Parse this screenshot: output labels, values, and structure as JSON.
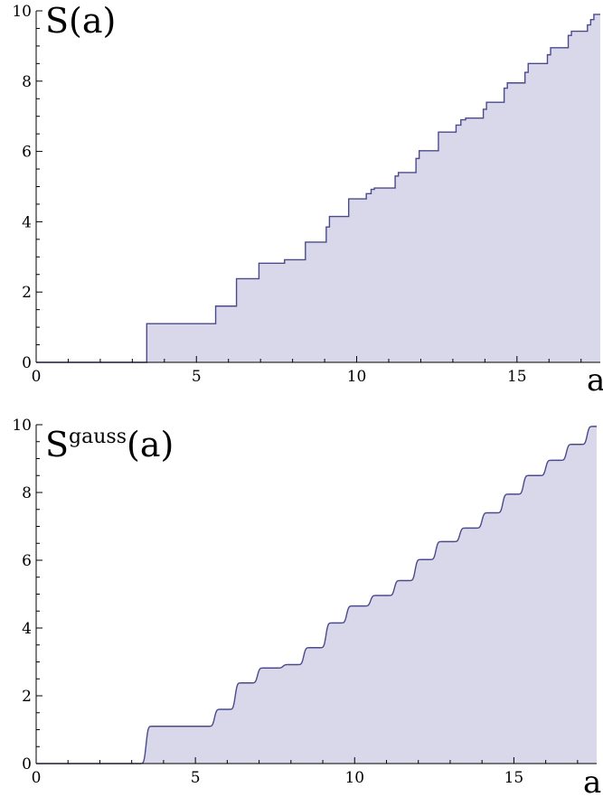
{
  "chart_data": [
    {
      "type": "area",
      "title": "",
      "ylabel": "S(a)",
      "xlabel": "a",
      "xlim": [
        0,
        17.6
      ],
      "ylim": [
        0,
        10
      ],
      "xticks": [
        0,
        5,
        10,
        15
      ],
      "yticks": [
        0,
        2,
        4,
        6,
        8,
        10
      ],
      "grid": false,
      "legend": "none",
      "colors": {
        "line": "#4a4a8c",
        "fill": "#d9d7ea"
      },
      "jumps": [
        {
          "x": 3.45,
          "y": 1.1
        },
        {
          "x": 5.6,
          "y": 1.6
        },
        {
          "x": 6.25,
          "y": 2.38
        },
        {
          "x": 6.95,
          "y": 2.82
        },
        {
          "x": 7.75,
          "y": 2.92
        },
        {
          "x": 8.4,
          "y": 3.42
        },
        {
          "x": 9.05,
          "y": 3.85
        },
        {
          "x": 9.15,
          "y": 4.15
        },
        {
          "x": 9.75,
          "y": 4.65
        },
        {
          "x": 10.3,
          "y": 4.8
        },
        {
          "x": 10.45,
          "y": 4.92
        },
        {
          "x": 10.55,
          "y": 4.96
        },
        {
          "x": 11.2,
          "y": 5.3
        },
        {
          "x": 11.3,
          "y": 5.4
        },
        {
          "x": 11.85,
          "y": 5.8
        },
        {
          "x": 11.95,
          "y": 6.02
        },
        {
          "x": 12.55,
          "y": 6.55
        },
        {
          "x": 13.1,
          "y": 6.75
        },
        {
          "x": 13.25,
          "y": 6.9
        },
        {
          "x": 13.4,
          "y": 6.95
        },
        {
          "x": 13.95,
          "y": 7.2
        },
        {
          "x": 14.05,
          "y": 7.4
        },
        {
          "x": 14.6,
          "y": 7.8
        },
        {
          "x": 14.7,
          "y": 7.95
        },
        {
          "x": 15.25,
          "y": 8.25
        },
        {
          "x": 15.35,
          "y": 8.5
        },
        {
          "x": 15.95,
          "y": 8.75
        },
        {
          "x": 16.05,
          "y": 8.95
        },
        {
          "x": 16.6,
          "y": 9.3
        },
        {
          "x": 16.7,
          "y": 9.42
        },
        {
          "x": 17.2,
          "y": 9.6
        },
        {
          "x": 17.3,
          "y": 9.75
        },
        {
          "x": 17.4,
          "y": 9.9
        }
      ]
    },
    {
      "type": "area",
      "title": "",
      "ylabel": "S",
      "ylabel_superscript": "gauss",
      "ylabel_suffix": "(a)",
      "xlabel": "a",
      "xlim": [
        0,
        17.6
      ],
      "ylim": [
        0,
        10
      ],
      "xticks": [
        0,
        5,
        10,
        15
      ],
      "yticks": [
        0,
        2,
        4,
        6,
        8,
        10
      ],
      "grid": false,
      "legend": "none",
      "colors": {
        "line": "#4a4a8c",
        "fill": "#d9d7ea"
      },
      "smoothing_width": 0.07,
      "jumps": [
        {
          "x": 3.45,
          "y": 1.1
        },
        {
          "x": 5.6,
          "y": 1.6
        },
        {
          "x": 6.25,
          "y": 2.38
        },
        {
          "x": 6.95,
          "y": 2.82
        },
        {
          "x": 7.75,
          "y": 2.92
        },
        {
          "x": 8.4,
          "y": 3.42
        },
        {
          "x": 9.1,
          "y": 4.15
        },
        {
          "x": 9.75,
          "y": 4.65
        },
        {
          "x": 10.5,
          "y": 4.96
        },
        {
          "x": 11.25,
          "y": 5.4
        },
        {
          "x": 11.9,
          "y": 6.02
        },
        {
          "x": 12.55,
          "y": 6.55
        },
        {
          "x": 13.3,
          "y": 6.95
        },
        {
          "x": 14.0,
          "y": 7.4
        },
        {
          "x": 14.65,
          "y": 7.95
        },
        {
          "x": 15.3,
          "y": 8.5
        },
        {
          "x": 16.0,
          "y": 8.95
        },
        {
          "x": 16.65,
          "y": 9.42
        },
        {
          "x": 17.3,
          "y": 9.95
        }
      ]
    }
  ]
}
